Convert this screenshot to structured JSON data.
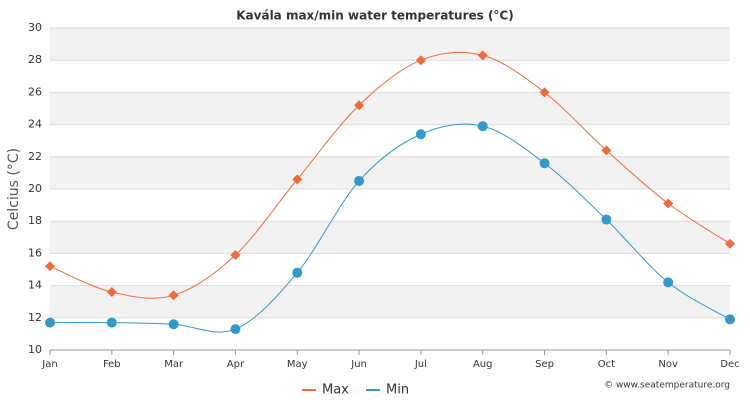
{
  "chart_data": {
    "type": "line",
    "title": "Kavála max/min water temperatures (°C)",
    "y_label": "Celcius (°C)",
    "credit": "© www.seatemperature.org",
    "categories": [
      "Jan",
      "Feb",
      "Mar",
      "Apr",
      "May",
      "Jun",
      "Jul",
      "Aug",
      "Sep",
      "Oct",
      "Nov",
      "Dec"
    ],
    "series": [
      {
        "name": "Max",
        "color": "#f26a3c",
        "marker": "diamond",
        "values": [
          15.2,
          13.6,
          13.4,
          15.9,
          20.6,
          25.2,
          28.0,
          28.3,
          26.0,
          22.4,
          19.1,
          16.6
        ]
      },
      {
        "name": "Min",
        "color": "#3399cc",
        "marker": "circle",
        "values": [
          11.7,
          11.7,
          11.6,
          11.3,
          14.8,
          20.5,
          23.4,
          23.9,
          21.6,
          18.1,
          14.2,
          11.9
        ]
      }
    ],
    "ylim": [
      10,
      30
    ],
    "yticks": [
      10,
      12,
      14,
      16,
      18,
      20,
      22,
      24,
      26,
      28,
      30
    ],
    "grid": true,
    "legend": "bottom"
  }
}
